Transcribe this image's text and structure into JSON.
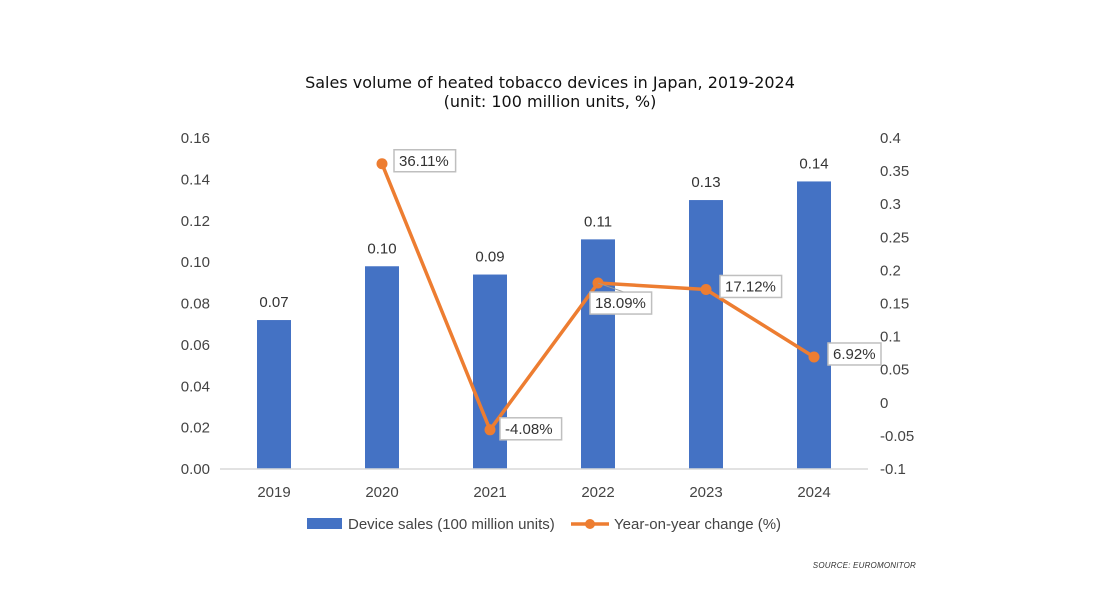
{
  "chart_data": {
    "type": "bar+line",
    "title": "Sales volume of heated tobacco devices in Japan, 2019-2024",
    "subtitle": "(unit: 100 million units, %)",
    "categories": [
      "2019",
      "2020",
      "2021",
      "2022",
      "2023",
      "2024"
    ],
    "series": [
      {
        "name": "Device sales (100 million units)",
        "type": "bar",
        "axis": "left",
        "color": "#4472C4",
        "values": [
          0.072,
          0.098,
          0.094,
          0.111,
          0.13,
          0.139
        ],
        "labels": [
          "0.07",
          "0.10",
          "0.09",
          "0.11",
          "0.13",
          "0.14"
        ]
      },
      {
        "name": "Year-on-year change (%)",
        "type": "line",
        "axis": "right",
        "color": "#ED7D31",
        "values": [
          null,
          0.3611,
          -0.0408,
          0.1809,
          0.1712,
          0.0692
        ],
        "labels": [
          null,
          "36.11%",
          "-4.08%",
          "18.09%",
          "17.12%",
          "6.92%"
        ]
      }
    ],
    "left_axis": {
      "range": [
        0,
        0.16
      ],
      "ticks": [
        "0.00",
        "0.02",
        "0.04",
        "0.06",
        "0.08",
        "0.10",
        "0.12",
        "0.14",
        "0.16"
      ]
    },
    "right_axis": {
      "range": [
        -0.1,
        0.4
      ],
      "ticks": [
        "-0.1",
        "-0.05",
        "0",
        "0.05",
        "0.1",
        "0.15",
        "0.2",
        "0.25",
        "0.3",
        "0.35",
        "0.4"
      ]
    },
    "grid": false,
    "legend": "bottom",
    "source": "SOURCE: EUROMONITOR"
  }
}
